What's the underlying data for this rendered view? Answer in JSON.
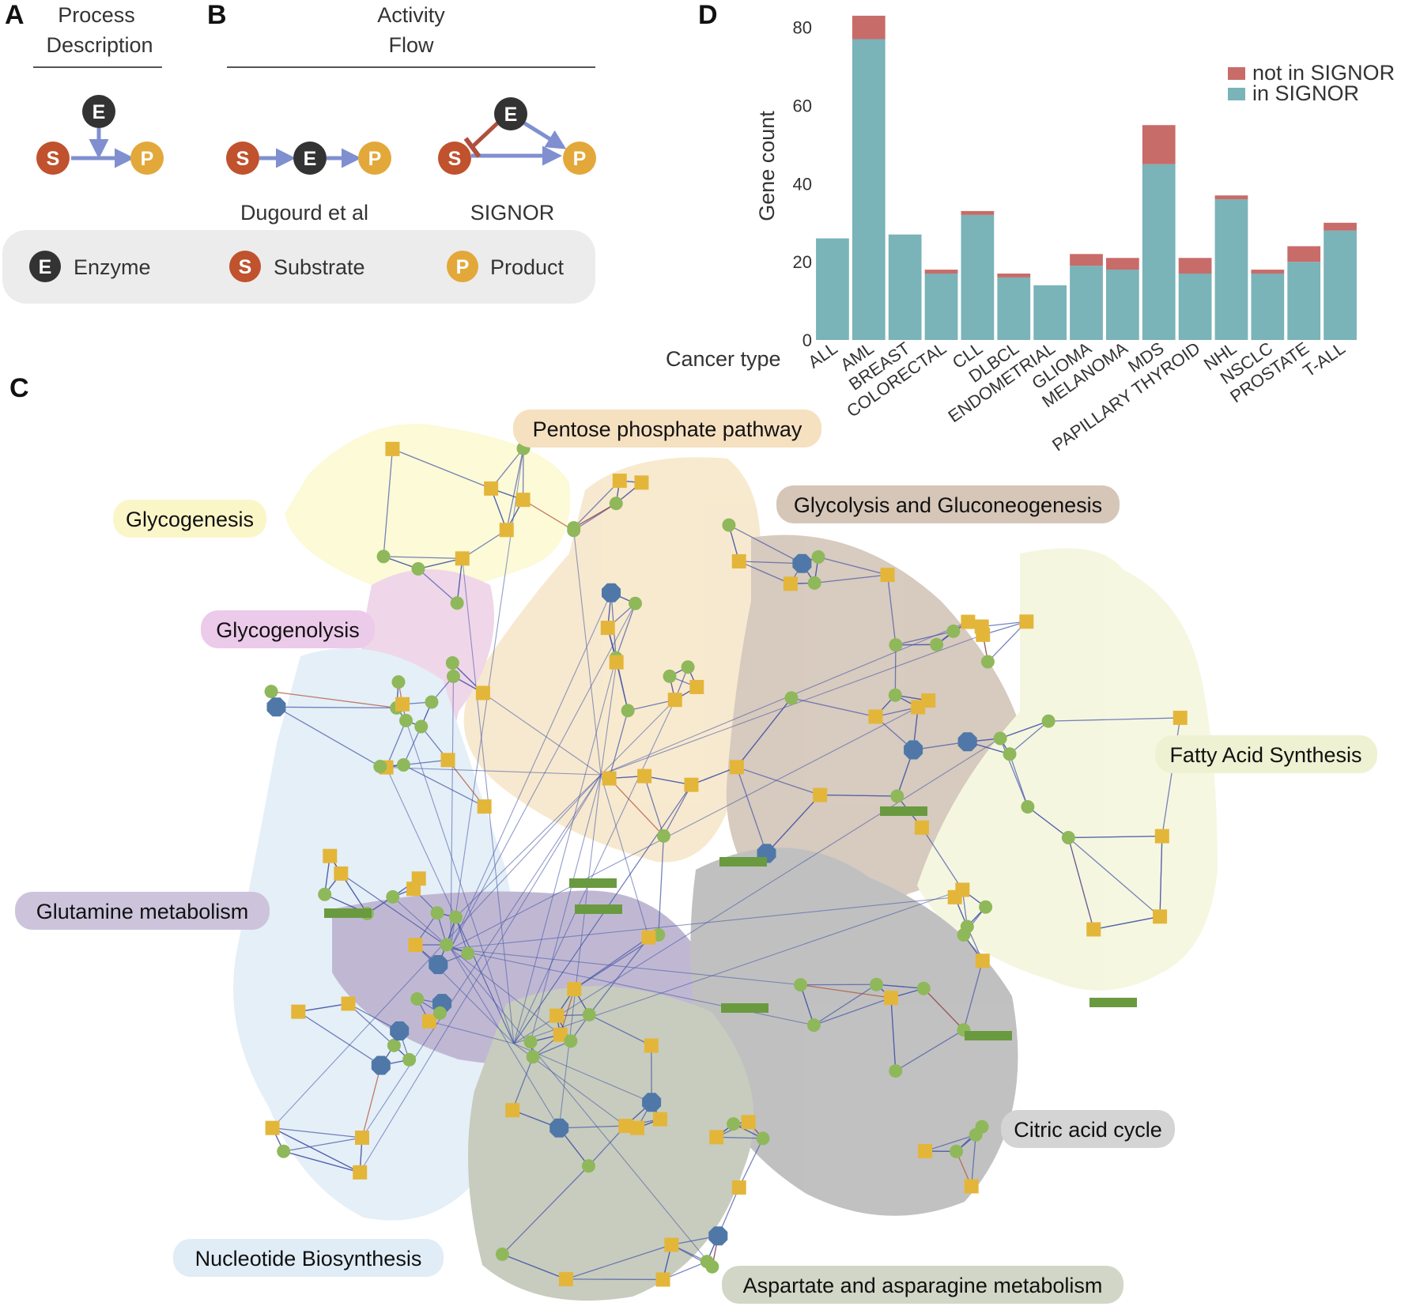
{
  "panel_a": {
    "letter": "A",
    "title_line1": "Process",
    "title_line2": "Description",
    "enzyme": "E",
    "substrate": "S",
    "product": "P"
  },
  "panel_b": {
    "letter": "B",
    "title_line1": "Activity",
    "title_line2": "Flow",
    "enzyme": "E",
    "substrate": "S",
    "product": "P",
    "left_caption": "Dugourd et al",
    "right_caption": "SIGNOR"
  },
  "legend": {
    "enzyme_letter": "E",
    "enzyme_label": "Enzyme",
    "substrate_letter": "S",
    "substrate_label": "Substrate",
    "product_letter": "P",
    "product_label": "Product"
  },
  "panel_c": {
    "letter": "C",
    "clusters": [
      "Pentose phosphate pathway",
      "Glycogenesis",
      "Glycolysis and Gluconeogenesis",
      "Glycogenolysis",
      "Fatty Acid Synthesis",
      "Glutamine metabolism",
      "Citric acid cycle",
      "Nucleotide Biosynthesis",
      "Aspartate and asparagine metabolism"
    ]
  },
  "panel_d": {
    "letter": "D"
  },
  "colors": {
    "enzyme": "#333333",
    "substrate": "#c0522d",
    "product": "#e3a83a",
    "edge": "#7f8fcf",
    "inhibit": "#b0503c",
    "in_signor": "#7ab3b8",
    "not_in_signor": "#c86c69"
  },
  "chart_data": {
    "type": "bar",
    "stacked": true,
    "categories": [
      "ALL",
      "AML",
      "BREAST",
      "COLORECTAL",
      "CLL",
      "DLBCL",
      "ENDOMETRIAL",
      "GLIOMA",
      "MELANOMA",
      "MDS",
      "PAPILLARY THYROID",
      "NHL",
      "NSCLC",
      "PROSTATE",
      "T-ALL"
    ],
    "series": [
      {
        "name": "in SIGNOR",
        "values": [
          26,
          77,
          27,
          17,
          32,
          16,
          14,
          19,
          18,
          45,
          17,
          36,
          17,
          20,
          28
        ]
      },
      {
        "name": "not in SIGNOR",
        "values": [
          0,
          6,
          0,
          1,
          1,
          1,
          0,
          3,
          3,
          10,
          4,
          1,
          1,
          4,
          2
        ]
      }
    ],
    "title": "",
    "xlabel": "Cancer type",
    "ylabel": "Gene count",
    "ylim": [
      0,
      85
    ],
    "yticks": [
      0,
      20,
      40,
      60,
      80
    ],
    "legend": [
      "not in SIGNOR",
      "in SIGNOR"
    ],
    "legend_position": "top-right"
  }
}
